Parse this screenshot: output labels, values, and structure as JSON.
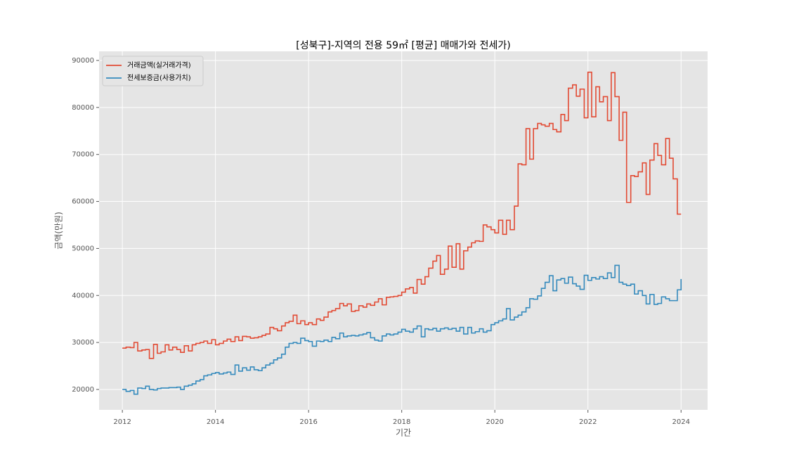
{
  "chart_data": {
    "type": "step",
    "title": "[성북구]-지역의 전용 59㎡ [평균] 매매가와 전세가)",
    "x_label": "기간",
    "y_label": "금액(만원)",
    "xlim": [
      2011.5,
      2024.57
    ],
    "xticks": [
      2012,
      2014,
      2016,
      2018,
      2020,
      2022,
      2024
    ],
    "ylim": [
      15660,
      91940
    ],
    "yticks": [
      20000,
      30000,
      40000,
      50000,
      60000,
      70000,
      80000,
      90000
    ],
    "grid": true,
    "legend": "upper left",
    "x": [
      2012,
      2012.08,
      2012.17,
      2012.25,
      2012.33,
      2012.42,
      2012.5,
      2012.58,
      2012.67,
      2012.75,
      2012.83,
      2012.92,
      2013,
      2013.08,
      2013.17,
      2013.25,
      2013.33,
      2013.42,
      2013.5,
      2013.58,
      2013.67,
      2013.75,
      2013.83,
      2013.92,
      2014,
      2014.08,
      2014.17,
      2014.25,
      2014.33,
      2014.42,
      2014.5,
      2014.58,
      2014.67,
      2014.75,
      2014.83,
      2014.92,
      2015,
      2015.08,
      2015.17,
      2015.25,
      2015.33,
      2015.42,
      2015.5,
      2015.58,
      2015.67,
      2015.75,
      2015.83,
      2015.92,
      2016,
      2016.08,
      2016.17,
      2016.25,
      2016.33,
      2016.42,
      2016.5,
      2016.58,
      2016.67,
      2016.75,
      2016.83,
      2016.92,
      2017,
      2017.08,
      2017.17,
      2017.25,
      2017.33,
      2017.42,
      2017.5,
      2017.58,
      2017.67,
      2017.75,
      2017.83,
      2017.92,
      2018,
      2018.08,
      2018.17,
      2018.25,
      2018.33,
      2018.42,
      2018.5,
      2018.58,
      2018.67,
      2018.75,
      2018.83,
      2018.92,
      2019,
      2019.08,
      2019.17,
      2019.25,
      2019.33,
      2019.42,
      2019.5,
      2019.58,
      2019.67,
      2019.75,
      2019.83,
      2019.92,
      2020,
      2020.08,
      2020.17,
      2020.25,
      2020.33,
      2020.42,
      2020.5,
      2020.58,
      2020.67,
      2020.75,
      2020.83,
      2020.92,
      2021,
      2021.08,
      2021.17,
      2021.25,
      2021.33,
      2021.42,
      2021.5,
      2021.58,
      2021.67,
      2021.75,
      2021.83,
      2021.92,
      2022,
      2022.08,
      2022.17,
      2022.25,
      2022.33,
      2022.42,
      2022.5,
      2022.58,
      2022.67,
      2022.75,
      2022.83,
      2022.92,
      2023,
      2023.08,
      2023.17,
      2023.25,
      2023.33,
      2023.42,
      2023.5,
      2023.58,
      2023.67,
      2023.75,
      2023.83,
      2023.92,
      2024
    ],
    "series": [
      {
        "name": "거래금액(실거래가격)",
        "color": "#E24A33",
        "values": [
          28800,
          29000,
          28900,
          30000,
          28200,
          28400,
          28500,
          26600,
          29600,
          27700,
          28000,
          29500,
          28400,
          29000,
          28500,
          27900,
          29300,
          28200,
          29500,
          29800,
          30000,
          30300,
          29800,
          30600,
          29500,
          29800,
          30300,
          30700,
          30200,
          31200,
          30400,
          31300,
          31200,
          30900,
          31000,
          31200,
          31500,
          31800,
          33200,
          32900,
          32500,
          33500,
          34200,
          34500,
          35800,
          34000,
          34600,
          33800,
          34200,
          33800,
          35000,
          34700,
          35400,
          36500,
          36800,
          37200,
          38300,
          37800,
          38200,
          36600,
          36800,
          37800,
          37500,
          38200,
          37900,
          38600,
          39300,
          38000,
          39600,
          39700,
          39800,
          40000,
          40700,
          41400,
          41700,
          40500,
          43400,
          42400,
          44000,
          45800,
          47300,
          48500,
          44500,
          45600,
          50500,
          46000,
          51000,
          45600,
          49500,
          50300,
          51200,
          51600,
          51500,
          55000,
          54600,
          54000,
          53300,
          56000,
          53000,
          56000,
          54000,
          59000,
          68000,
          67800,
          75500,
          69000,
          75500,
          76600,
          76300,
          76000,
          76600,
          75300,
          74800,
          78500,
          77200,
          84100,
          84800,
          82400,
          83900,
          77800,
          87500,
          78000,
          84400,
          81200,
          82300,
          77200,
          87400,
          82300,
          73000,
          79000,
          59800,
          65500,
          65300,
          66300,
          68200,
          61500,
          68800,
          72300,
          69800,
          67800,
          73400,
          69200,
          64800,
          57300,
          57300
        ]
      },
      {
        "name": "전세보증금(사용가치)",
        "color": "#348ABD",
        "values": [
          20000,
          19600,
          19800,
          19000,
          20300,
          20200,
          20700,
          20000,
          19900,
          20200,
          20300,
          20300,
          20400,
          20400,
          20500,
          20000,
          20700,
          20900,
          21200,
          21800,
          22100,
          22900,
          23100,
          23400,
          23600,
          23300,
          23500,
          23700,
          23200,
          25200,
          23900,
          24600,
          24100,
          24800,
          24200,
          24000,
          24600,
          25200,
          25600,
          26300,
          26700,
          27500,
          29000,
          29800,
          30000,
          29800,
          30900,
          30400,
          30200,
          29200,
          30300,
          30200,
          30500,
          30200,
          31100,
          30800,
          32000,
          31200,
          31400,
          31500,
          31400,
          31600,
          31800,
          32100,
          31000,
          30500,
          30300,
          31400,
          31800,
          31600,
          31800,
          32200,
          32800,
          32400,
          32200,
          32900,
          33500,
          31200,
          32900,
          32700,
          33000,
          32400,
          32900,
          33100,
          32800,
          33000,
          32400,
          33200,
          31800,
          33200,
          32000,
          32300,
          32900,
          32200,
          32500,
          33800,
          34200,
          34600,
          35000,
          37200,
          34800,
          35400,
          35800,
          36500,
          37400,
          39300,
          39200,
          39900,
          41500,
          42800,
          44200,
          41000,
          43300,
          43600,
          42600,
          43900,
          42500,
          42000,
          41300,
          44300,
          43200,
          43800,
          43500,
          44000,
          43600,
          44800,
          43800,
          46400,
          42800,
          42400,
          42100,
          42400,
          40300,
          41000,
          40000,
          38200,
          40200,
          38100,
          38300,
          39700,
          39300,
          38900,
          38900,
          41200,
          43500
        ]
      }
    ]
  }
}
